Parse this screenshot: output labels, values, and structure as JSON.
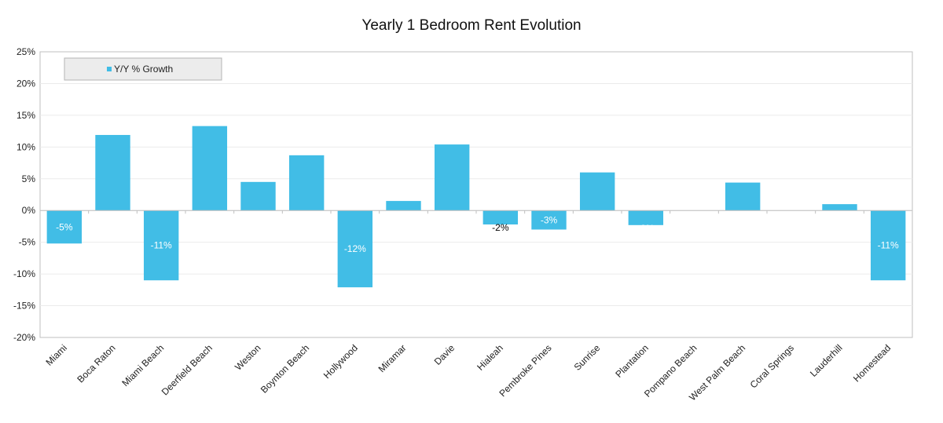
{
  "chart_data": {
    "type": "bar",
    "title": "Yearly 1 Bedroom Rent Evolution",
    "xlabel": "",
    "ylabel": "",
    "categories": [
      "Miami",
      "Boca Raton",
      "Miami Beach",
      "Deerfield Beach",
      "Weston",
      "Boynton Beach",
      "Hollywood",
      "Miramar",
      "Davie",
      "Hialeah",
      "Pembroke Pines",
      "Sunrise",
      "Plantation",
      "Pompano Beach",
      "West Palm Beach",
      "Coral Springs",
      "Lauderhill",
      "Homestead"
    ],
    "series": [
      {
        "name": "Y/Y % Growth",
        "values": [
          -5.2,
          11.9,
          -11.0,
          13.3,
          4.5,
          8.7,
          -12.1,
          1.5,
          10.4,
          -2.2,
          -3.0,
          6.0,
          -2.3,
          0,
          4.4,
          0,
          1.0,
          -11.0
        ],
        "data_labels": [
          "-5%",
          "",
          "-11%",
          "",
          "",
          "",
          "-12%",
          "",
          "",
          "-2%",
          "-3%",
          "",
          "-2%",
          "",
          "",
          "",
          "",
          "-11%"
        ]
      }
    ],
    "ylim": [
      -20,
      25
    ],
    "yticks": [
      -20,
      -15,
      -10,
      -5,
      0,
      5,
      10,
      15,
      20,
      25
    ],
    "ytick_labels": [
      "-20%",
      "-15%",
      "-10%",
      "-5%",
      "0%",
      "5%",
      "10%",
      "15%",
      "20%",
      "25%"
    ],
    "grid": true,
    "legend_position": "top-left",
    "colors": {
      "bar": "#41bde6",
      "grid": "#ebebeb",
      "axis": "#bfbfbf",
      "legend_bg": "#ececec"
    }
  }
}
